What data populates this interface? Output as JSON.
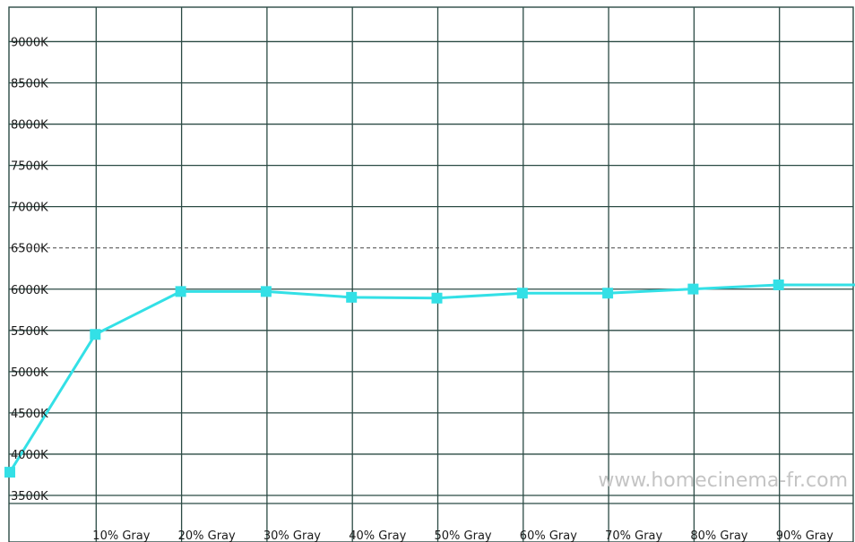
{
  "chart_data": {
    "type": "line",
    "title": "",
    "xlabel": "",
    "ylabel": "",
    "categories": [
      "",
      "10% Gray",
      "20% Gray",
      "30% Gray",
      "40% Gray",
      "50% Gray",
      "60% Gray",
      "70% Gray",
      "80% Gray",
      "90% Gray",
      ""
    ],
    "y_ticks": [
      "3500K",
      "4000K",
      "4500K",
      "5000K",
      "5500K",
      "6000K",
      "6500K",
      "7000K",
      "7500K",
      "8000K",
      "8500K",
      "9000K"
    ],
    "ylim": [
      3000,
      9500
    ],
    "grid": true,
    "reference_line": {
      "value": 6500,
      "style": "dashed"
    },
    "series": [
      {
        "values": [
          3890,
          5560,
          6080,
          6080,
          6010,
          6000,
          6060,
          6060,
          6110,
          6160,
          6160
        ],
        "markers": [
          true,
          true,
          true,
          true,
          true,
          true,
          true,
          true,
          true,
          true,
          false
        ],
        "color": "#33e0e6"
      }
    ],
    "watermark": "www.homecinema-fr.com",
    "colors": {
      "grid": "#2b4a44",
      "line": "#33e0e6",
      "reference": "#444444"
    }
  }
}
